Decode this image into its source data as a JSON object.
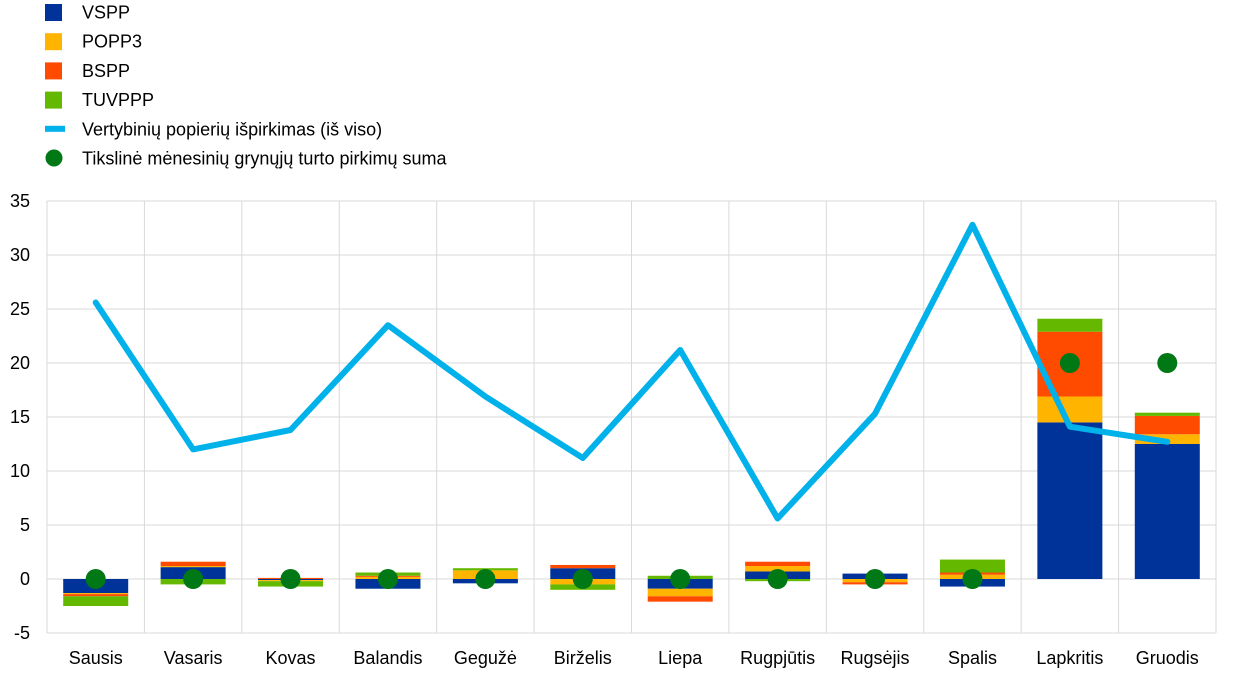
{
  "chart_data": {
    "type": "bar",
    "stacked": true,
    "categories": [
      "Sausis",
      "Vasaris",
      "Kovas",
      "Balandis",
      "Gegužė",
      "Birželis",
      "Liepa",
      "Rugpjūtis",
      "Rugsėjis",
      "Spalis",
      "Lapkritis",
      "Gruodis"
    ],
    "ylim": [
      -5,
      35
    ],
    "yticks": [
      -5,
      0,
      5,
      10,
      15,
      20,
      25,
      30,
      35
    ],
    "grid": true,
    "legend_position": "top-left",
    "series": [
      {
        "name": "VSPP",
        "kind": "bar",
        "color": "#003399",
        "values": [
          -1.3,
          1.1,
          -0.1,
          -0.9,
          -0.4,
          1.0,
          -0.9,
          0.7,
          0.5,
          -0.7,
          14.5,
          12.5
        ]
      },
      {
        "name": "POPP3",
        "kind": "bar",
        "color": "#FFB400",
        "values": [
          -0.1,
          0.1,
          -0.1,
          0.2,
          0.8,
          -0.5,
          -0.7,
          0.5,
          -0.3,
          0.4,
          2.4,
          0.9
        ]
      },
      {
        "name": "BSPP",
        "kind": "bar",
        "color": "#FF4B00",
        "values": [
          -0.2,
          0.4,
          0.1,
          0.1,
          0.0,
          0.3,
          -0.5,
          0.4,
          -0.2,
          0.2,
          6.0,
          1.7
        ]
      },
      {
        "name": "TUVPPP",
        "kind": "bar",
        "color": "#65B800",
        "values": [
          -0.9,
          -0.5,
          -0.5,
          0.3,
          0.2,
          -0.5,
          0.3,
          -0.2,
          0.0,
          1.2,
          1.2,
          0.3
        ]
      },
      {
        "name": "Vertybinių popierių išpirkimas (iš viso)",
        "kind": "line",
        "color": "#00B1EA",
        "values": [
          25.6,
          12.0,
          13.8,
          23.5,
          16.9,
          11.2,
          21.2,
          5.6,
          15.3,
          32.8,
          14.1,
          12.7
        ]
      },
      {
        "name": "Tikslinė mėnesinių grynųjų turto pirkimų suma",
        "kind": "marker",
        "color": "#007816",
        "values": [
          0,
          0,
          0,
          0,
          0,
          0,
          0,
          0,
          0,
          0,
          20,
          20
        ]
      }
    ]
  }
}
